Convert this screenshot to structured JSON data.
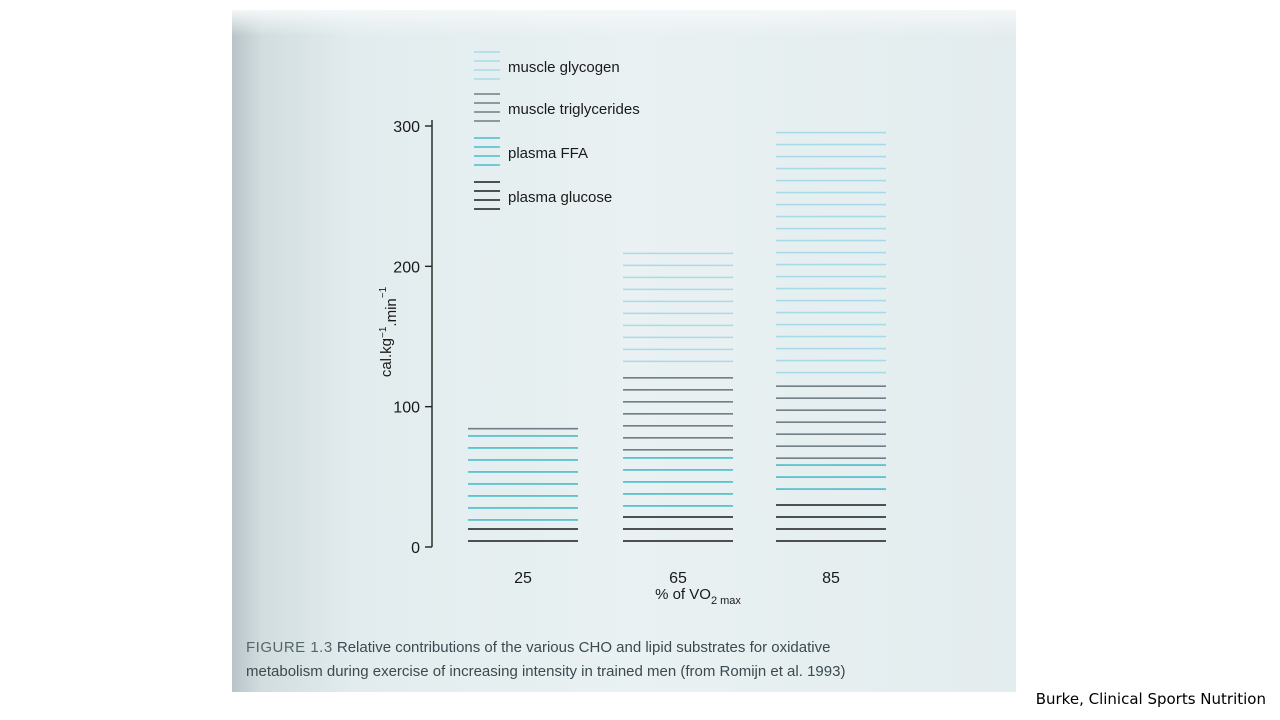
{
  "figure": {
    "caption_label": "FIGURE 1.3",
    "caption_line1": "Relative contributions of the various CHO and lipid substrates for oxidative",
    "caption_line2": "metabolism during exercise of increasing intensity in trained men (from Romijn et al. 1993)"
  },
  "attribution": "Burke, Clinical Sports Nutrition",
  "colors": {
    "muscle_glycogen": "#a8dbe8",
    "muscle_triglycerides": "#6f7f85",
    "plasma_ffa": "#4bbdc9",
    "plasma_glucose": "#1b1b1b",
    "axis": "#222222",
    "text": "#1a1a1a"
  },
  "chart_data": {
    "type": "bar",
    "stacked": true,
    "xlabel": "% of VO2 max",
    "ylabel": "cal.kg−1.min−1",
    "categories": [
      "25",
      "65",
      "85"
    ],
    "ylim": [
      0,
      300
    ],
    "yticks": [
      0,
      100,
      200,
      300
    ],
    "legend_position": "top-left",
    "series": [
      {
        "name": "plasma glucose",
        "color_key": "plasma_glucose",
        "values": [
          15,
          25,
          37
        ]
      },
      {
        "name": "plasma FFA",
        "color_key": "plasma_ffa",
        "values": [
          65,
          40,
          22
        ]
      },
      {
        "name": "muscle triglycerides",
        "color_key": "muscle_triglycerides",
        "values": [
          6,
          63,
          61
        ]
      },
      {
        "name": "muscle glycogen",
        "color_key": "muscle_glycogen",
        "values": [
          0,
          83,
          180
        ]
      }
    ],
    "legend_order": [
      "muscle glycogen",
      "muscle triglycerides",
      "plasma FFA",
      "plasma glucose"
    ]
  }
}
